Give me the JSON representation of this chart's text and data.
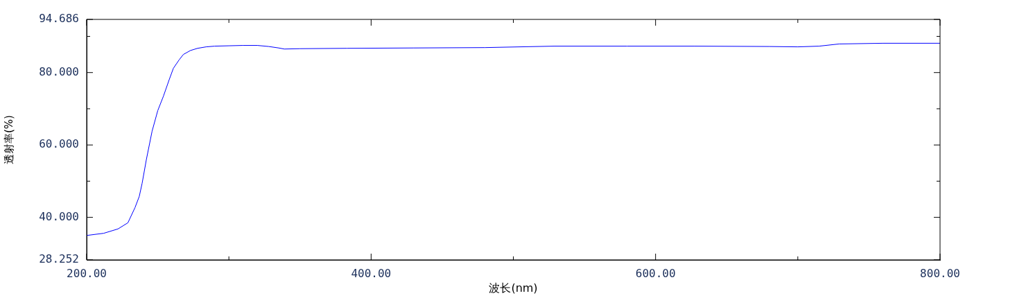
{
  "chart_data": {
    "type": "line",
    "xlabel": "波长(nm)",
    "ylabel": "透射率(%)",
    "x": [
      200,
      212,
      222,
      229,
      234,
      237,
      239,
      242,
      246,
      250,
      254,
      258,
      261,
      265,
      268,
      273,
      278,
      284,
      290,
      300,
      310,
      320,
      328,
      335,
      339,
      350,
      383,
      430,
      480,
      529,
      580,
      627,
      680,
      700,
      715,
      729,
      760,
      800
    ],
    "series": [
      {
        "color": "#0000ff",
        "values": [
          35.0,
          35.6,
          36.8,
          38.5,
          42.7,
          45.8,
          49.4,
          56.0,
          63.8,
          69.5,
          73.5,
          78.0,
          81.2,
          83.5,
          85.0,
          86.1,
          86.7,
          87.1,
          87.3,
          87.4,
          87.5,
          87.5,
          87.2,
          86.8,
          86.5,
          86.6,
          86.7,
          86.8,
          86.9,
          87.3,
          87.3,
          87.3,
          87.2,
          87.1,
          87.3,
          87.9,
          88.1,
          88.1
        ]
      }
    ],
    "xlim": [
      200,
      800
    ],
    "ylim": [
      28.252,
      94.686
    ],
    "xticks": [
      {
        "value": 200,
        "label": "200.00"
      },
      {
        "value": 300,
        "label": null
      },
      {
        "value": 400,
        "label": "400.00"
      },
      {
        "value": 500,
        "label": null
      },
      {
        "value": 600,
        "label": "600.00"
      },
      {
        "value": 700,
        "label": null
      },
      {
        "value": 800,
        "label": "800.00"
      }
    ],
    "yticks": [
      {
        "value": 28.252,
        "label": "28.252"
      },
      {
        "value": 40,
        "label": "40.000"
      },
      {
        "value": 50,
        "label": null
      },
      {
        "value": 60,
        "label": "60.000"
      },
      {
        "value": 70,
        "label": null
      },
      {
        "value": 80,
        "label": "80.000"
      },
      {
        "value": 90,
        "label": null
      },
      {
        "value": 94.686,
        "label": "94.686"
      }
    ],
    "marker": "none",
    "line_style": "solid",
    "legend": false
  }
}
